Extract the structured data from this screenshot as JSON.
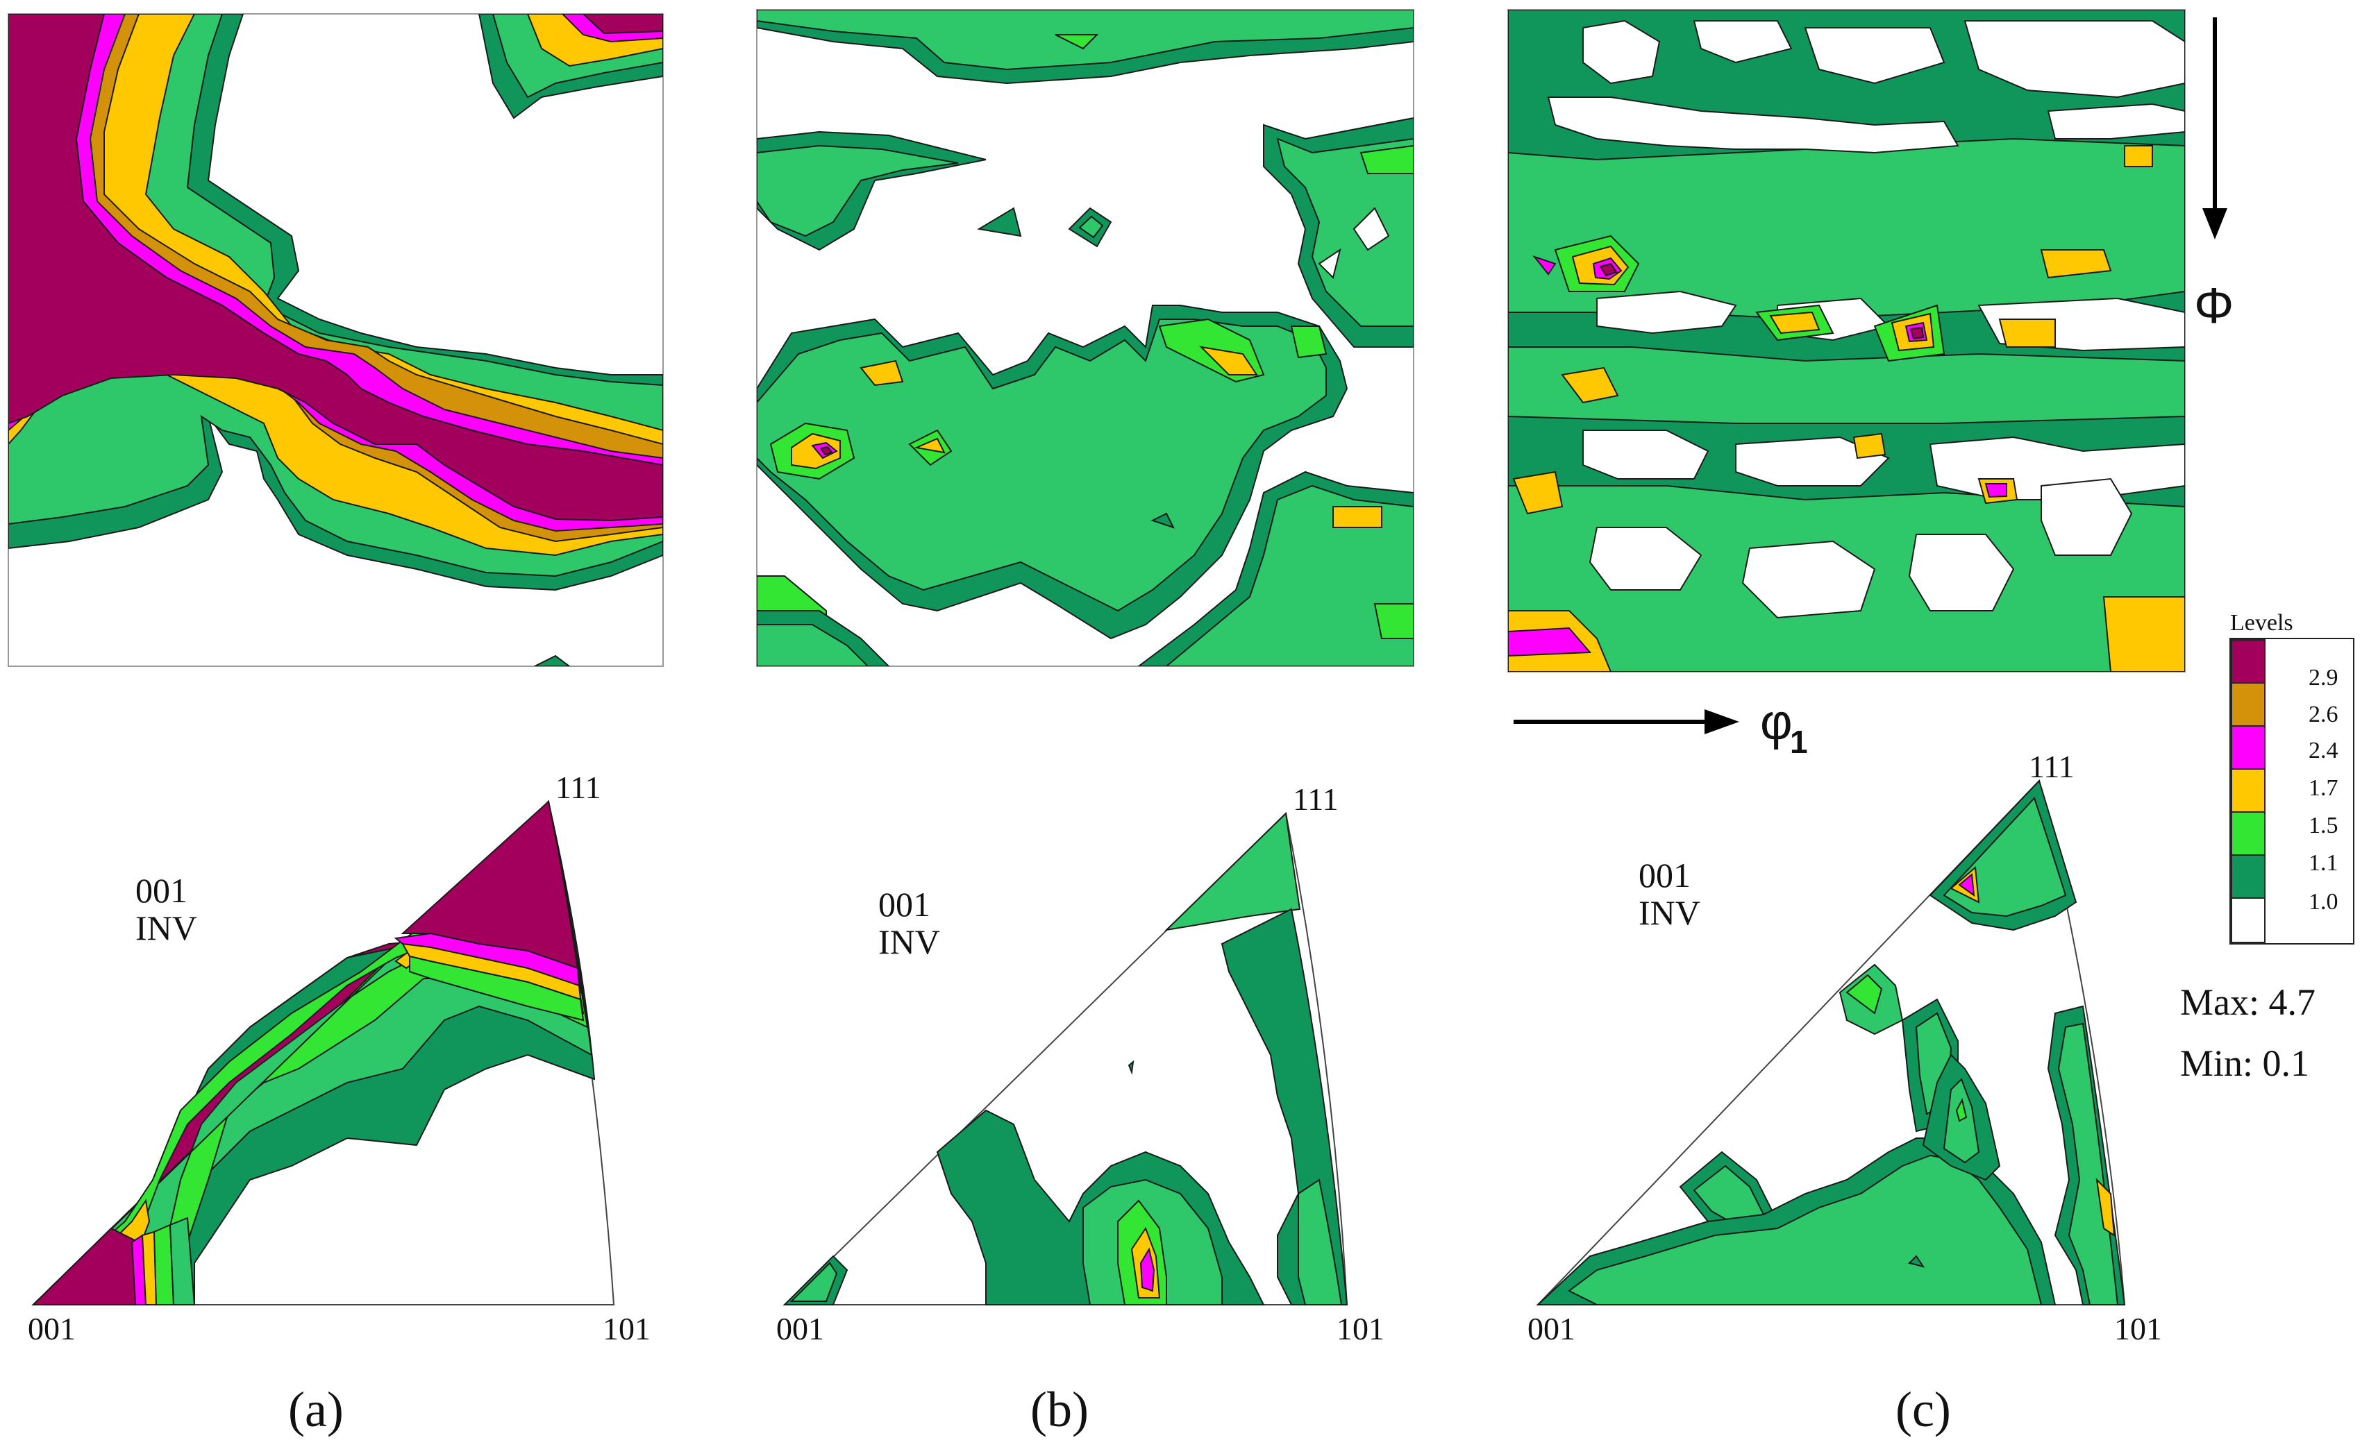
{
  "panels": [
    {
      "label": "(a)",
      "ipf": {
        "top": "111",
        "left": "001",
        "right": "101",
        "name_line1": "001",
        "name_line2": "INV"
      }
    },
    {
      "label": "(b)",
      "ipf": {
        "top": "111",
        "left": "001",
        "right": "101",
        "name_line1": "001",
        "name_line2": "INV"
      }
    },
    {
      "label": "(c)",
      "ipf": {
        "top": "111",
        "left": "001",
        "right": "101",
        "name_line1": "001",
        "name_line2": "INV"
      }
    }
  ],
  "axes": {
    "phi": "Φ",
    "phi1": "φ",
    "phi1_sub": "1"
  },
  "legend": {
    "title": "Levels",
    "levels": [
      {
        "value": "2.9",
        "color": "#a3005e"
      },
      {
        "value": "2.6",
        "color": "#d4920a"
      },
      {
        "value": "2.4",
        "color": "#ff00ff"
      },
      {
        "value": "1.7",
        "color": "#ffc800"
      },
      {
        "value": "1.5",
        "color": "#33e633"
      },
      {
        "value": "1.1",
        "color": "#10955a"
      },
      {
        "value": "1.0",
        "color": "#ffffff"
      }
    ]
  },
  "max": "Max: 4.7",
  "min": "Min: 0.1",
  "colors": {
    "level_1_0": "#ffffff",
    "level_1_1": "#10955a",
    "level_1_3": "#2ec86a",
    "level_1_5": "#33e633",
    "level_1_7": "#ffc800",
    "level_2_4": "#ff00ff",
    "level_2_6": "#d4920a",
    "level_2_9": "#a3005e"
  }
}
